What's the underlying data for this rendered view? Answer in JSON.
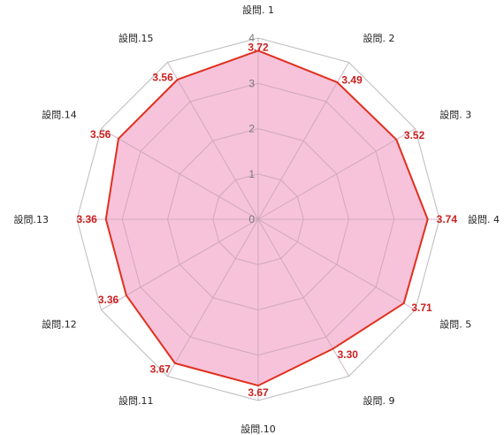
{
  "chart_data": {
    "type": "radar",
    "title": "",
    "categories": [
      "設問. 1",
      "設問. 2",
      "設問. 3",
      "設問. 4",
      "設問. 5",
      "設問. 9",
      "設問.10",
      "設問.11",
      "設問.12",
      "設問.13",
      "設問.14",
      "設問.15"
    ],
    "series": [
      {
        "values": [
          3.72,
          3.49,
          3.52,
          3.74,
          3.71,
          3.3,
          3.67,
          3.67,
          3.36,
          3.36,
          3.56,
          3.56
        ],
        "fill_color": "#f5bcd6",
        "line_color": "#e0301e"
      }
    ],
    "rlim": [
      0,
      4
    ],
    "ticks": [
      0,
      1,
      2,
      3,
      4
    ],
    "grid": true,
    "grid_color": "#c9a5b8",
    "outer_ring_color": "#bbbbbb",
    "value_label_color": "#cc1f1f"
  }
}
